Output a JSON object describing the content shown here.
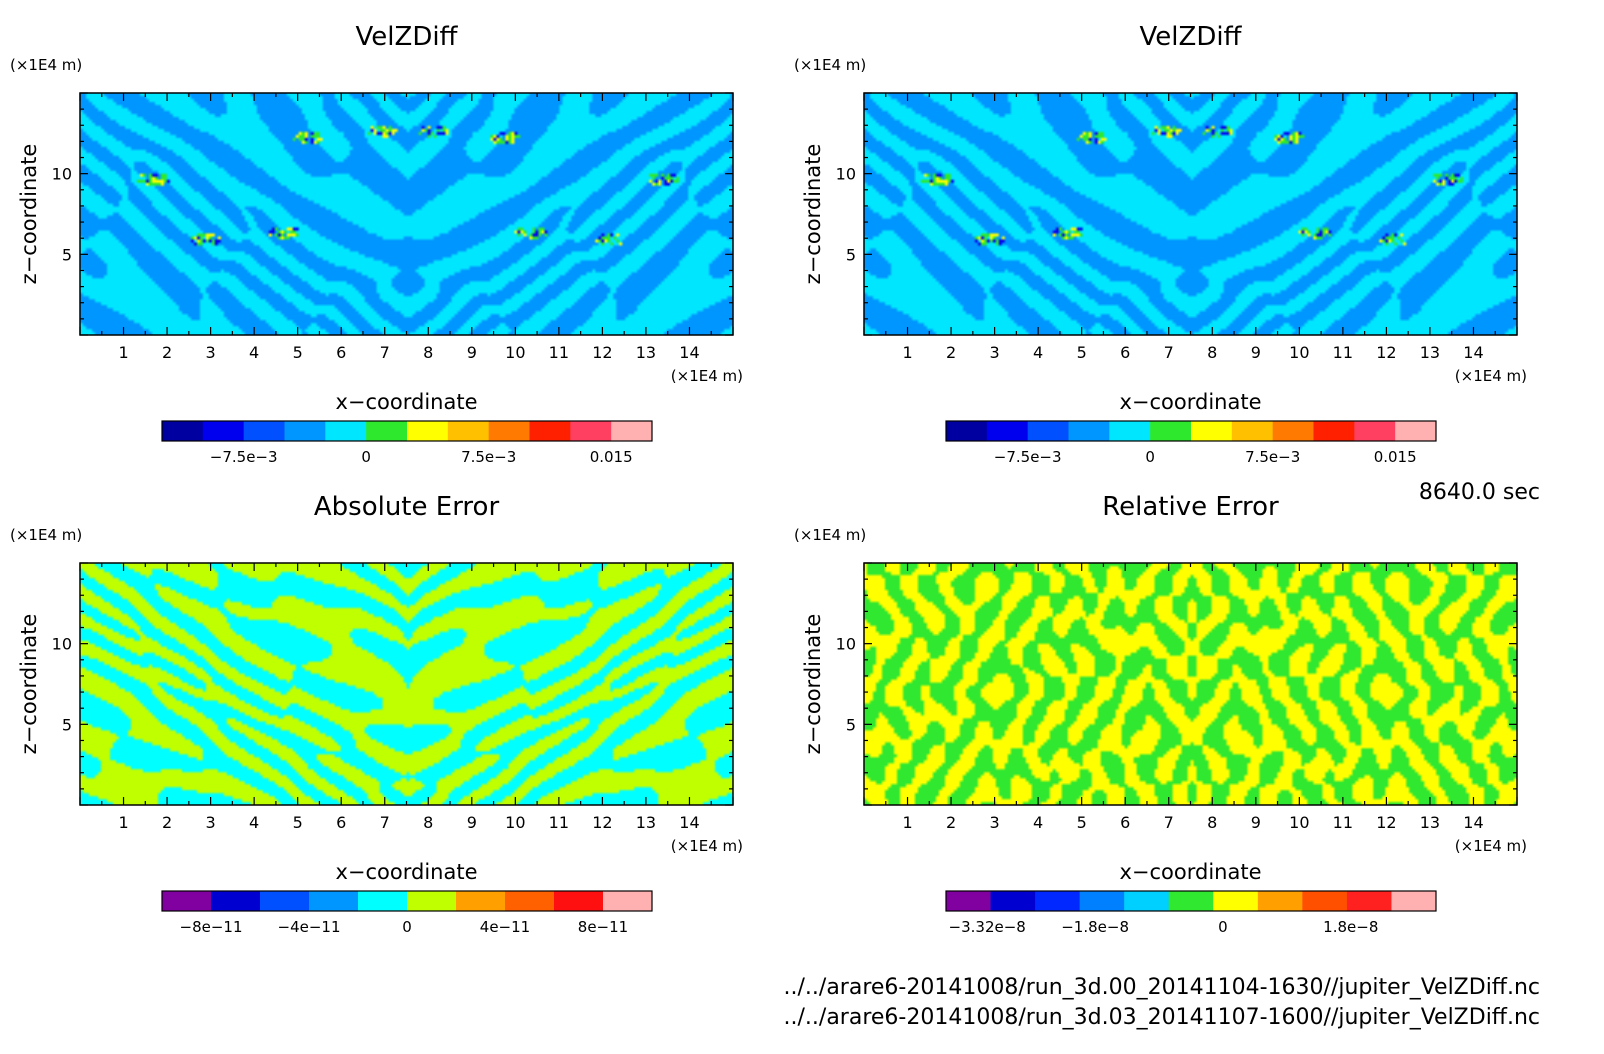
{
  "figure": {
    "time_label": "8640.0 sec",
    "files": [
      "../../arare6-20141008/run_3d.00_20141104-1630//jupiter_VelZDiff.nc",
      "../../arare6-20141008/run_3d.03_20141107-1600//jupiter_VelZDiff.nc"
    ]
  },
  "chart_data": [
    {
      "type": "heatmap",
      "title": "VelZDiff",
      "xlabel": "x−coordinate",
      "ylabel": "z−coordinate",
      "xunit": "(×1E4 m)",
      "yunit": "(×1E4 m)",
      "xlim": [
        0,
        15
      ],
      "ylim": [
        0,
        15
      ],
      "xticks": [
        1,
        2,
        3,
        4,
        5,
        6,
        7,
        8,
        9,
        10,
        11,
        12,
        13,
        14
      ],
      "yticks": [
        5,
        10
      ],
      "colorbar": {
        "colors": [
          "#0000a0",
          "#0000ee",
          "#0050ff",
          "#0096ff",
          "#00e6ff",
          "#2ee82e",
          "#ffff00",
          "#ffc000",
          "#ff7a00",
          "#ff2000",
          "#ff4060",
          "#ffb0b0"
        ],
        "ticks": [
          "−7.5e−3",
          "0",
          "7.5e−3",
          "0.015"
        ],
        "tick_values": [
          -0.0075,
          0,
          0.0075,
          0.015
        ],
        "range": [
          -0.0125,
          0.0175
        ]
      },
      "field": {
        "seed": 11,
        "low": 3,
        "high": 4,
        "mode": "stripes",
        "hotspots": true
      }
    },
    {
      "type": "heatmap",
      "title": "VelZDiff",
      "xlabel": "x−coordinate",
      "ylabel": "z−coordinate",
      "xunit": "(×1E4 m)",
      "yunit": "(×1E4 m)",
      "xlim": [
        0,
        15
      ],
      "ylim": [
        0,
        15
      ],
      "xticks": [
        1,
        2,
        3,
        4,
        5,
        6,
        7,
        8,
        9,
        10,
        11,
        12,
        13,
        14
      ],
      "yticks": [
        5,
        10
      ],
      "colorbar": {
        "colors": [
          "#0000a0",
          "#0000ee",
          "#0050ff",
          "#0096ff",
          "#00e6ff",
          "#2ee82e",
          "#ffff00",
          "#ffc000",
          "#ff7a00",
          "#ff2000",
          "#ff4060",
          "#ffb0b0"
        ],
        "ticks": [
          "−7.5e−3",
          "0",
          "7.5e−3",
          "0.015"
        ],
        "tick_values": [
          -0.0075,
          0,
          0.0075,
          0.015
        ],
        "range": [
          -0.0125,
          0.0175
        ]
      },
      "field": {
        "seed": 11,
        "low": 3,
        "high": 4,
        "mode": "stripes",
        "hotspots": true
      }
    },
    {
      "type": "heatmap",
      "title": "Absolute Error",
      "xlabel": "x−coordinate",
      "ylabel": "z−coordinate",
      "xunit": "(×1E4 m)",
      "yunit": "(×1E4 m)",
      "xlim": [
        0,
        15
      ],
      "ylim": [
        0,
        15
      ],
      "xticks": [
        1,
        2,
        3,
        4,
        5,
        6,
        7,
        8,
        9,
        10,
        11,
        12,
        13,
        14
      ],
      "yticks": [
        5,
        10
      ],
      "colorbar": {
        "colors": [
          "#8000a0",
          "#0000d0",
          "#0050ff",
          "#0096ff",
          "#00ffff",
          "#c0ff00",
          "#ffa000",
          "#ff6000",
          "#ff1010",
          "#ffb0b0"
        ],
        "ticks": [
          "−8e−11",
          "−4e−11",
          "0",
          "4e−11",
          "8e−11"
        ],
        "tick_values": [
          -8e-11,
          -4e-11,
          0,
          4e-11,
          8e-11
        ],
        "range": [
          -1e-10,
          1e-10
        ]
      },
      "field": {
        "seed": 23,
        "low": 4,
        "high": 5,
        "mode": "stripes",
        "hotspots": false
      }
    },
    {
      "type": "heatmap",
      "title": "Relative Error",
      "xlabel": "x−coordinate",
      "ylabel": "z−coordinate",
      "xunit": "(×1E4 m)",
      "yunit": "(×1E4 m)",
      "xlim": [
        0,
        15
      ],
      "ylim": [
        0,
        15
      ],
      "xticks": [
        1,
        2,
        3,
        4,
        5,
        6,
        7,
        8,
        9,
        10,
        11,
        12,
        13,
        14
      ],
      "yticks": [
        5,
        10
      ],
      "colorbar": {
        "colors": [
          "#8000a0",
          "#0000d0",
          "#0028ff",
          "#0080ff",
          "#00d0ff",
          "#30e830",
          "#ffff00",
          "#ffa000",
          "#ff5000",
          "#ff2020",
          "#ffb0b0"
        ],
        "ticks": [
          "−3.32e−8",
          "−1.8e−8",
          "0",
          "1.8e−8"
        ],
        "tick_values": [
          -3.32e-08,
          -1.8e-08,
          0,
          1.8e-08
        ],
        "range": [
          -3.9e-08,
          3e-08
        ]
      },
      "field": {
        "seed": 37,
        "low": 5,
        "high": 6,
        "mode": "blobs",
        "hotspots": false
      }
    }
  ]
}
